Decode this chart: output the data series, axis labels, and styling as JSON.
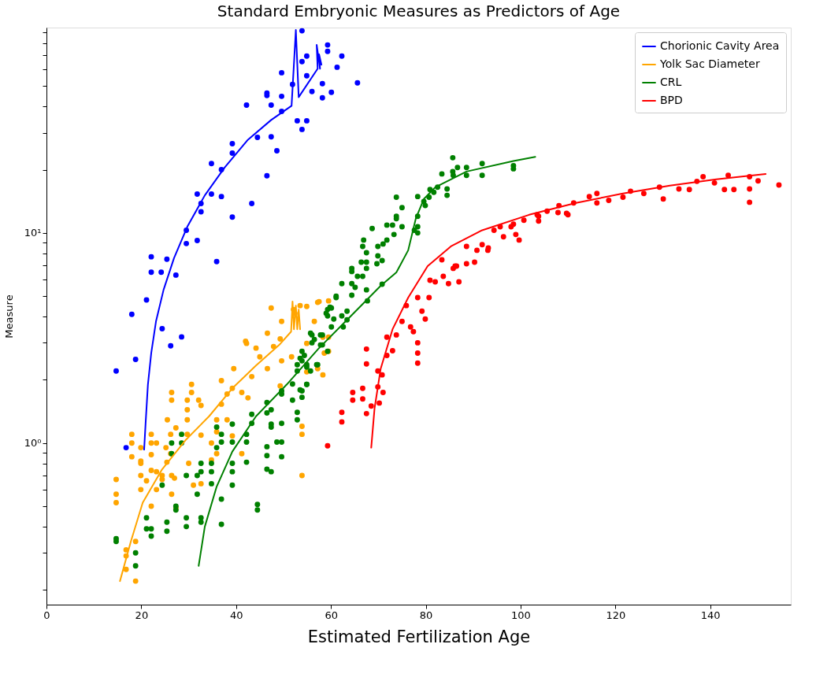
{
  "chart_data": {
    "type": "scatter",
    "title": "Standard Embryonic Measures as Predictors of Age",
    "xlabel": "Estimated Fertilization Age",
    "ylabel": "Measure",
    "log": "y",
    "legend": "top right",
    "xlim": [
      0,
      157
    ],
    "xticks": [
      0,
      20,
      40,
      60,
      80,
      100,
      120,
      140
    ],
    "ylim": [
      0.17,
      95
    ],
    "yticks": [
      {
        "value": 0.2,
        "label": null
      },
      {
        "value": 0.3,
        "label": null
      },
      {
        "value": 0.4,
        "label": null
      },
      {
        "value": 0.5,
        "label": null
      },
      {
        "value": 0.6,
        "label": null
      },
      {
        "value": 0.7,
        "label": null
      },
      {
        "value": 0.8,
        "label": null
      },
      {
        "value": 0.9,
        "label": null
      },
      {
        "value": 1,
        "label": "10⁰"
      },
      {
        "value": 2,
        "label": null
      },
      {
        "value": 3,
        "label": null
      },
      {
        "value": 4,
        "label": null
      },
      {
        "value": 5,
        "label": null
      },
      {
        "value": 6,
        "label": null
      },
      {
        "value": 7,
        "label": null
      },
      {
        "value": 8,
        "label": null
      },
      {
        "value": 9,
        "label": null
      },
      {
        "value": 10,
        "label": "10¹"
      },
      {
        "value": 20,
        "label": null
      },
      {
        "value": 30,
        "label": null
      },
      {
        "value": 40,
        "label": null
      },
      {
        "value": 50,
        "label": null
      },
      {
        "value": 60,
        "label": null
      },
      {
        "value": 70,
        "label": null
      },
      {
        "value": 80,
        "label": null
      },
      {
        "value": 90,
        "label": null
      }
    ],
    "series": [
      {
        "type": "scatter",
        "marker": "circle",
        "color": "#0000ff",
        "x": [
          53.9,
          59.3,
          59.3,
          62.3,
          54.9,
          53.9,
          61.3,
          49.6,
          54.9,
          51.9,
          58.2,
          56.0,
          58.2,
          60.1,
          65.6,
          46.5,
          46.5,
          49.6,
          42.2,
          47.4,
          49.6,
          52.9,
          54.9,
          53.9,
          44.5,
          47.4,
          48.6,
          39.2,
          39.2,
          34.8,
          36.9,
          46.5,
          31.8,
          34.8,
          36.9,
          32.6,
          32.6,
          43.3,
          39.2,
          29.5,
          29.5,
          31.8,
          35.9,
          22.1,
          25.4,
          22.1,
          24.2,
          27.3,
          21.1,
          18.0,
          24.4,
          28.5,
          26.2,
          18.8,
          14.7,
          16.8
        ],
        "values": [
          91.7,
          78.5,
          73.2,
          69.5,
          69.5,
          65.4,
          61.5,
          57.9,
          56.0,
          50.9,
          51.4,
          47.1,
          44.0,
          46.7,
          51.8,
          46.3,
          45.1,
          44.7,
          40.6,
          40.6,
          37.9,
          34.2,
          34.2,
          31.1,
          28.5,
          28.7,
          24.6,
          26.6,
          24.0,
          21.4,
          20.0,
          18.7,
          15.3,
          15.3,
          14.9,
          13.8,
          12.6,
          13.8,
          11.9,
          10.3,
          8.9,
          9.2,
          7.3,
          7.7,
          7.5,
          6.5,
          6.5,
          6.3,
          4.8,
          4.1,
          3.5,
          3.2,
          2.9,
          2.5,
          2.2,
          0.95
        ]
      },
      {
        "type": "scatter",
        "marker": "circle",
        "color": "#ffa500",
        "x": [
          14.7,
          14.7,
          14.7,
          18.0,
          18.0,
          19.9,
          19.9,
          19.9,
          22.1,
          22.1,
          22.1,
          22.1,
          23.2,
          23.2,
          24.4,
          25.2,
          25.4,
          26.2,
          26.2,
          26.4,
          26.4,
          25.5,
          27.0,
          27.3,
          29.7,
          29.7,
          29.7,
          29.7,
          30.0,
          30.6,
          30.6,
          32.1,
          32.6,
          32.6,
          31.0,
          34.8,
          34.8,
          35.9,
          35.9,
          36.9,
          36.9,
          38.1,
          38.1,
          39.2,
          39.2,
          39.5,
          41.2,
          42.0,
          42.5,
          43.3,
          44.2,
          45.0,
          46.6,
          46.6,
          47.9,
          49.3,
          49.3,
          49.6,
          51.7,
          52.4,
          53.5,
          54.9,
          54.9,
          57.2,
          58.3,
          59.5,
          59.5,
          53.9,
          53.9,
          53.9,
          47.4,
          54.9,
          57.2,
          16.8,
          16.8,
          16.8,
          18.8,
          18.8,
          19.9,
          21.1,
          22.1,
          23.2,
          24.4,
          26.4,
          27.3,
          26.4,
          32.6,
          35.9,
          41.2,
          18.0,
          19.9,
          42.2,
          49.6,
          52.1,
          56.5,
          58.3,
          59.5,
          57.5,
          58.6
        ],
        "values": [
          0.67,
          0.57,
          0.52,
          1.1,
          1.0,
          0.95,
          0.82,
          0.7,
          1.1,
          1.0,
          0.88,
          0.74,
          1.0,
          0.73,
          0.7,
          0.95,
          0.81,
          1.1,
          0.89,
          1.6,
          1.74,
          1.29,
          0.68,
          1.18,
          1.6,
          1.44,
          1.29,
          1.1,
          0.8,
          1.9,
          1.74,
          1.6,
          1.51,
          1.09,
          0.63,
          1.0,
          0.83,
          1.29,
          1.13,
          1.98,
          1.53,
          1.71,
          1.29,
          1.82,
          1.08,
          2.26,
          1.74,
          3.05,
          1.64,
          2.07,
          2.83,
          2.57,
          3.33,
          2.26,
          2.88,
          3.13,
          1.87,
          3.79,
          2.57,
          4.14,
          4.51,
          2.18,
          2.98,
          2.26,
          2.11,
          4.75,
          2.73,
          0.7,
          1.2,
          1.1,
          4.39,
          4.47,
          4.67,
          0.31,
          0.29,
          0.25,
          0.34,
          0.22,
          0.6,
          0.66,
          0.5,
          0.6,
          0.67,
          0.57,
          0.49,
          0.7,
          0.64,
          0.89,
          0.89,
          0.86,
          0.8,
          2.98,
          2.46,
          4.32,
          3.79,
          3.19,
          3.19,
          4.71,
          2.68
        ]
      },
      {
        "type": "scatter",
        "marker": "circle",
        "color": "#008000",
        "x": [
          14.7,
          14.7,
          18.8,
          18.8,
          21.1,
          21.1,
          22.1,
          22.1,
          24.4,
          25.4,
          25.4,
          26.4,
          26.4,
          27.3,
          27.3,
          28.5,
          28.5,
          29.5,
          29.5,
          29.5,
          31.8,
          31.8,
          32.6,
          32.6,
          32.6,
          32.6,
          34.8,
          34.8,
          34.8,
          35.9,
          35.9,
          36.9,
          36.9,
          36.9,
          36.9,
          39.2,
          39.2,
          39.2,
          39.2,
          39.2,
          42.2,
          42.2,
          42.2,
          43.3,
          43.3,
          44.5,
          44.5,
          46.5,
          46.5,
          46.5,
          46.5,
          46.5,
          47.4,
          47.4,
          47.4,
          47.4,
          48.6,
          49.6,
          49.6,
          49.6,
          49.6,
          49.6,
          51.9,
          51.9,
          52.9,
          52.9,
          53.9,
          53.9,
          53.9,
          53.9,
          54.9,
          54.9,
          56.0,
          56.0,
          57.2,
          58.2,
          58.2,
          59.3,
          59.3,
          59.3,
          60.1,
          60.1,
          61.1,
          62.3,
          63.4,
          63.4,
          85.7,
          86.7,
          85.7,
          85.8,
          88.6,
          88.6,
          91.9,
          91.9,
          98.5,
          98.5,
          83.4,
          84.5,
          84.5,
          82.5,
          80.9,
          81.7,
          78.3,
          79.6,
          80.7,
          79.9,
          78.3,
          78.3,
          77.6,
          78.3,
          73.8,
          75.0,
          73.8,
          73.8,
          71.8,
          73.0,
          75.0,
          68.7,
          66.9,
          66.7,
          71.8,
          73.3,
          71.0,
          69.9,
          69.9,
          70.8,
          67.5,
          67.5,
          66.4,
          69.7,
          64.4,
          64.4,
          65.6,
          66.7,
          67.5,
          62.3,
          64.4,
          65.1,
          70.8,
          67.5,
          67.7,
          61.1,
          64.4,
          59.8,
          59.0,
          60.6,
          62.6,
          57.8,
          55.7,
          56.5,
          57.8,
          54.4,
          53.5,
          54.9,
          55.7,
          57.0,
          52.9,
          52.9,
          53.5,
          54.9
        ],
        "values": [
          0.35,
          0.34,
          0.3,
          0.26,
          0.44,
          0.39,
          0.39,
          0.36,
          0.63,
          0.42,
          0.38,
          1.0,
          0.89,
          0.5,
          0.48,
          1.1,
          1.0,
          0.7,
          0.44,
          0.4,
          0.7,
          0.57,
          0.8,
          0.73,
          0.44,
          0.42,
          0.8,
          0.73,
          0.64,
          1.19,
          0.95,
          1.1,
          1.01,
          0.54,
          0.41,
          1.23,
          1.01,
          0.8,
          0.73,
          0.63,
          1.1,
          1.01,
          0.81,
          1.37,
          1.24,
          0.51,
          0.48,
          1.56,
          1.39,
          0.96,
          0.87,
          0.75,
          1.44,
          0.73,
          1.23,
          1.19,
          1.01,
          1.01,
          1.77,
          1.71,
          1.24,
          0.86,
          1.91,
          1.6,
          1.4,
          1.29,
          1.77,
          1.65,
          2.73,
          2.46,
          2.3,
          1.9,
          3.27,
          3.0,
          2.36,
          3.27,
          2.93,
          2.73,
          4.32,
          4.03,
          4.39,
          3.57,
          5.0,
          4.03,
          3.86,
          4.24,
          22.8,
          20.5,
          19.6,
          18.8,
          20.5,
          18.8,
          21.4,
          18.8,
          20.9,
          20.2,
          19.1,
          16.2,
          15.1,
          16.5,
          16.1,
          15.6,
          14.9,
          14.1,
          14.8,
          13.5,
          12.0,
          10.7,
          10.3,
          10.0,
          14.8,
          13.2,
          12.0,
          11.7,
          10.9,
          10.9,
          10.7,
          10.5,
          9.25,
          8.63,
          9.25,
          9.83,
          8.86,
          8.63,
          7.78,
          7.38,
          8.05,
          7.26,
          7.26,
          7.13,
          6.78,
          6.55,
          6.21,
          6.21,
          6.78,
          5.74,
          5.74,
          5.51,
          5.7,
          5.36,
          4.75,
          4.92,
          5.05,
          4.43,
          4.14,
          3.89,
          3.57,
          3.27,
          3.33,
          3.11,
          2.93,
          2.61,
          2.53,
          2.36,
          2.2,
          2.36,
          2.36,
          2.2,
          1.79,
          1.9
        ]
      },
      {
        "type": "scatter",
        "marker": "circle",
        "color": "#ff0000",
        "x": [
          59.3,
          62.3,
          62.3,
          64.6,
          64.6,
          66.7,
          66.7,
          67.5,
          67.5,
          67.5,
          68.5,
          69.9,
          69.9,
          70.2,
          70.8,
          71.0,
          71.8,
          71.8,
          73.0,
          73.8,
          75.0,
          75.9,
          76.8,
          77.4,
          78.3,
          78.3,
          78.3,
          78.3,
          79.2,
          79.9,
          80.7,
          80.9,
          82.0,
          83.4,
          83.7,
          84.8,
          85.8,
          86.5,
          87.0,
          88.6,
          88.6,
          90.3,
          91.9,
          93.1,
          94.4,
          95.7,
          96.4,
          98.0,
          99.0,
          99.7,
          100.7,
          103.8,
          103.8,
          105.6,
          107.9,
          109.7,
          111.2,
          114.5,
          116.1,
          116.1,
          118.6,
          121.6,
          123.2,
          126.0,
          129.3,
          130.1,
          133.4,
          135.6,
          137.2,
          138.5,
          140.9,
          143.0,
          143.8,
          145.0,
          148.3,
          148.3,
          148.3,
          150.1,
          154.5,
          86.2,
          90.8,
          93.2,
          98.5,
          103.5,
          108.1,
          110.0
        ],
        "values": [
          0.97,
          1.4,
          1.26,
          1.74,
          1.6,
          1.82,
          1.62,
          2.8,
          2.38,
          1.38,
          1.5,
          2.2,
          1.85,
          1.55,
          2.11,
          1.74,
          3.19,
          2.61,
          2.75,
          3.27,
          3.79,
          4.51,
          3.57,
          3.39,
          3.0,
          2.68,
          2.4,
          4.92,
          4.24,
          3.89,
          4.92,
          5.95,
          5.85,
          7.45,
          6.21,
          5.74,
          6.78,
          6.95,
          5.85,
          8.63,
          7.13,
          7.26,
          8.79,
          8.27,
          10.3,
          10.7,
          9.58,
          10.7,
          9.83,
          9.25,
          11.5,
          12.0,
          11.4,
          12.7,
          12.5,
          12.4,
          13.9,
          14.9,
          15.4,
          13.9,
          14.3,
          14.8,
          15.8,
          15.4,
          16.5,
          14.5,
          16.2,
          16.1,
          17.6,
          18.5,
          17.3,
          16.1,
          18.8,
          16.1,
          18.5,
          16.2,
          14.0,
          17.7,
          16.9,
          6.95,
          8.27,
          8.48,
          11.0,
          12.2,
          13.5,
          12.2
        ]
      },
      {
        "type": "line",
        "name": "Chorionic Cavity Area",
        "color": "#0000ff",
        "x": [
          20.6,
          20.9,
          21.4,
          22.1,
          23.1,
          24.7,
          26.9,
          29.7,
          33.4,
          37.6,
          42.5,
          47.4,
          51.7,
          52.6,
          53.2,
          57.2,
          57.0,
          57.7,
          57.5,
          58.0
        ],
        "values": [
          0.93,
          1.23,
          1.9,
          2.68,
          3.79,
          5.36,
          7.59,
          10.7,
          15.1,
          20.5,
          27.8,
          34.5,
          40.3,
          92.5,
          44.3,
          60.5,
          78.5,
          60.5,
          70.8,
          63.2
        ]
      },
      {
        "type": "line",
        "name": "Yolk Sac Diameter",
        "color": "#ffa500",
        "x": [
          15.5,
          17.8,
          20.3,
          24.4,
          29.3,
          34.3,
          39.2,
          44.2,
          49.1,
          51.6,
          51.9,
          52.2,
          52.6,
          52.9,
          53.2,
          53.5
        ],
        "values": [
          0.22,
          0.34,
          0.52,
          0.75,
          1.03,
          1.34,
          1.82,
          2.34,
          2.93,
          3.39,
          4.71,
          3.48,
          4.51,
          3.48,
          4.32,
          3.48
        ]
      },
      {
        "type": "line",
        "name": "CRL",
        "color": "#008000",
        "x": [
          32.1,
          33.4,
          35.9,
          39.2,
          44.2,
          50.7,
          57.3,
          63.9,
          70.5,
          73.8,
          76.3,
          77.9,
          79.6,
          82.0,
          88.6,
          98.5,
          103.1
        ],
        "values": [
          0.26,
          0.4,
          0.62,
          0.91,
          1.34,
          1.9,
          2.8,
          3.96,
          5.6,
          6.49,
          8.27,
          11.7,
          14.5,
          16.5,
          19.6,
          22.0,
          23.0
        ]
      },
      {
        "type": "line",
        "name": "BPD",
        "color": "#ff0000",
        "x": [
          68.5,
          69.2,
          70.5,
          73.0,
          76.3,
          80.4,
          85.3,
          91.9,
          101.8,
          111.7,
          121.6,
          131.5,
          141.3,
          151.7
        ],
        "values": [
          0.95,
          1.46,
          2.26,
          3.48,
          4.92,
          6.95,
          8.63,
          10.3,
          12.2,
          13.9,
          15.4,
          16.8,
          18.0,
          19.1
        ]
      }
    ]
  }
}
